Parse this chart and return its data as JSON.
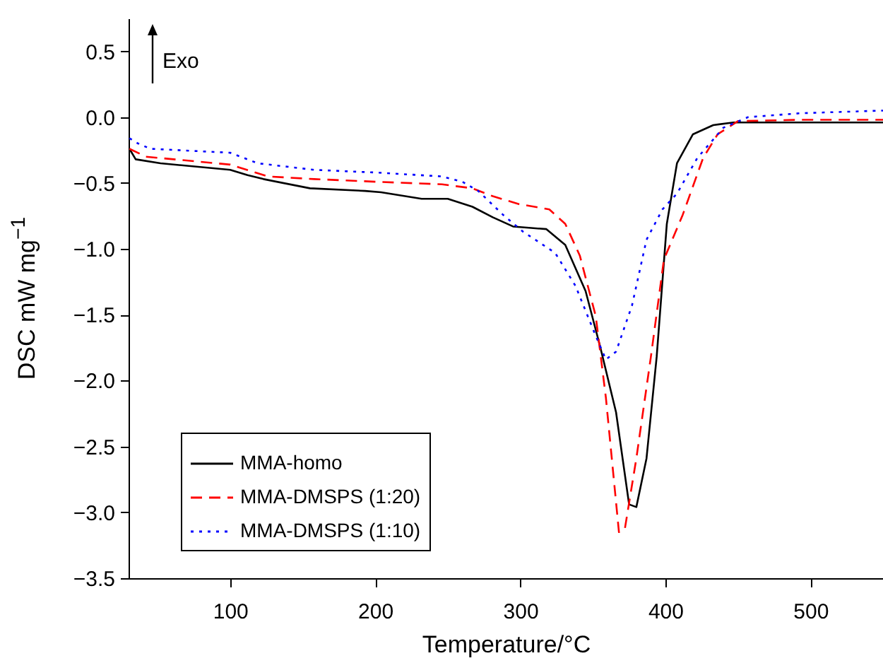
{
  "chart_data": {
    "type": "line",
    "xlabel": "Temperature/°C",
    "ylabel": "DSC mW mg$^{−1}$",
    "annotations": [
      "Exo"
    ],
    "xlim": [
      30,
      550
    ],
    "ylim": [
      -3.5,
      0.75
    ],
    "xticks": [
      100,
      200,
      300,
      400,
      500
    ],
    "yticks": [
      {
        "value": -3.5,
        "label": "−3.5"
      },
      {
        "value": -3,
        "label": "−3.0"
      },
      {
        "value": -2.5,
        "label": "−2.5"
      },
      {
        "value": -2,
        "label": "−2.0"
      },
      {
        "value": -1.5,
        "label": "−1.5"
      },
      {
        "value": -1,
        "label": "−1.0"
      },
      {
        "value": -0.5,
        "label": "−0.5"
      },
      {
        "value": 0,
        "label": "0.0"
      },
      {
        "value": 0.5,
        "label": "0.5"
      }
    ],
    "grid": false,
    "legend": "bottom left",
    "series": [
      {
        "name": "MMA-homo",
        "color": "#000000",
        "line_style": "solid",
        "x": [
          30.6,
          34.9,
          52,
          100,
          112,
          123,
          155,
          193,
          204,
          232,
          250,
          267,
          281,
          295,
          306,
          318,
          331,
          345,
          355,
          366,
          375,
          380,
          387,
          394,
          401,
          408,
          419,
          433,
          447,
          493,
          550
        ],
        "values": [
          -0.24,
          -0.32,
          -0.35,
          -0.4,
          -0.44,
          -0.47,
          -0.54,
          -0.56,
          -0.57,
          -0.62,
          -0.62,
          -0.68,
          -0.76,
          -0.83,
          -0.84,
          -0.85,
          -0.97,
          -1.32,
          -1.74,
          -2.24,
          -2.94,
          -2.96,
          -2.59,
          -1.82,
          -0.81,
          -0.35,
          -0.13,
          -0.06,
          -0.04,
          -0.04,
          -0.04
        ]
      },
      {
        "name": "MMA-DMSPS (1:20)",
        "color": "#ff0000",
        "line_style": "dashed",
        "x": [
          30.6,
          42,
          100,
          126,
          158,
          200,
          246,
          267,
          281,
          299,
          320,
          331,
          341,
          352,
          359,
          368,
          372,
          380,
          390,
          399,
          412,
          426,
          436,
          450,
          493,
          550
        ],
        "values": [
          -0.24,
          -0.3,
          -0.36,
          -0.45,
          -0.47,
          -0.49,
          -0.51,
          -0.54,
          -0.6,
          -0.66,
          -0.7,
          -0.81,
          -1.05,
          -1.51,
          -2.13,
          -3.15,
          -3.13,
          -2.59,
          -1.82,
          -1.08,
          -0.74,
          -0.31,
          -0.13,
          -0.03,
          -0.02,
          -0.02
        ]
      },
      {
        "name": "MMA-DMSPS (1:10)",
        "color": "#0000ff",
        "line_style": "dotted",
        "x": [
          30.6,
          36.6,
          45,
          100,
          119,
          158,
          200,
          246,
          260,
          271,
          288,
          302,
          324,
          338,
          352,
          359,
          366,
          377,
          387,
          398,
          408,
          422,
          440,
          457,
          493,
          550
        ],
        "values": [
          -0.16,
          -0.2,
          -0.24,
          -0.27,
          -0.35,
          -0.4,
          -0.42,
          -0.45,
          -0.49,
          -0.56,
          -0.74,
          -0.87,
          -1.03,
          -1.28,
          -1.66,
          -1.84,
          -1.78,
          -1.43,
          -0.93,
          -0.7,
          -0.58,
          -0.31,
          -0.08,
          0,
          0.03,
          0.05
        ]
      }
    ]
  }
}
